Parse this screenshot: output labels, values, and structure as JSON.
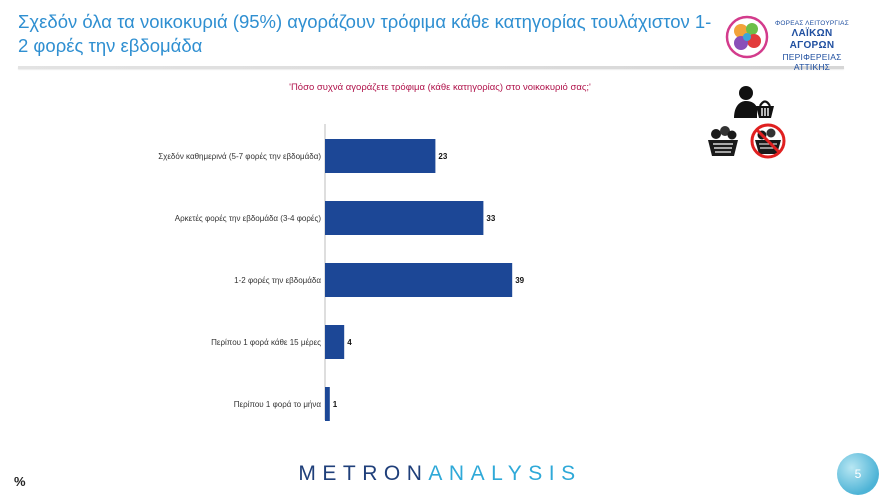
{
  "slide": {
    "title": "Σχεδόν όλα τα νοικοκυριά (95%) αγοράζουν τρόφιμα κάθε κατηγορίας τουλάχιστον 1-2 φορές την εβδομάδα",
    "question": "'Πόσο συχνά αγοράζετε τρόφιμα (κάθε κατηγορίας) στο νοικοκυριό σας;'",
    "unit_symbol": "%",
    "page_number": "5"
  },
  "logo": {
    "line1": "ΦΟΡΕΑΣ ΛΕΙΤΟΥΡΓΙΑΣ",
    "line2": "ΛΑΪΚΩΝ ΑΓΟΡΩΝ",
    "line3": "ΠΕΡΙΦΕΡΕΙΑΣ ΑΤΤΙΚΗΣ"
  },
  "brand": {
    "part1": "METRON",
    "part2": "ANALYSIS"
  },
  "icons": {
    "shopper": "person-with-basket-icon",
    "basket": "food-basket-icon",
    "no_basket": "no-food-basket-icon"
  },
  "colors": {
    "bar": "#1c4796",
    "title": "#2f8fd1",
    "question": "#b0134b",
    "brand": "#1f3f7a",
    "brand_accent": "#2fa9d8"
  },
  "chart_data": {
    "type": "bar",
    "orientation": "horizontal",
    "categories": [
      "Σχεδόν καθημερινά (5-7 φορές την εβδομάδα)",
      "Αρκετές φορές την εβδομάδα (3-4 φορές)",
      "1-2 φορές την εβδομάδα",
      "Περίπου 1 φορά κάθε 15 μέρες",
      "Περίπου 1 φορά το μήνα"
    ],
    "values": [
      23,
      33,
      39,
      4,
      1
    ],
    "xlim": [
      0,
      100
    ],
    "grid": false,
    "legend": "none"
  }
}
